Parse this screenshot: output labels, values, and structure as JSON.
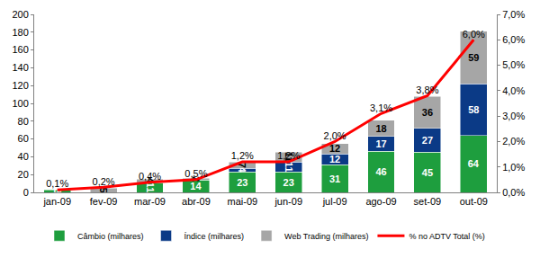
{
  "chart_data": {
    "type": "bar",
    "stacked": true,
    "data_labels": true,
    "grid": false,
    "legend": "bottom",
    "categories": [
      "jan-09",
      "fev-09",
      "mar-09",
      "abr-09",
      "mai-09",
      "jun-09",
      "jul-09",
      "ago-09",
      "set-09",
      "out-09"
    ],
    "series": [
      {
        "name": "Câmbio (milhares)",
        "color": "#1e9e3e",
        "values": [
          3,
          null,
          11,
          14,
          23,
          23,
          31,
          46,
          45,
          64
        ]
      },
      {
        "name": "Índice (milhares)",
        "color": "#0b3a86",
        "values": [
          null,
          null,
          null,
          null,
          4,
          11,
          12,
          17,
          27,
          58
        ]
      },
      {
        "name": "Web Trading (milhares)",
        "color": "#a6a6a6",
        "values": [
          null,
          5,
          4,
          2,
          7,
          11,
          12,
          18,
          36,
          59
        ]
      },
      {
        "name": "% no ADTV Total (%)",
        "type": "line",
        "axis": "y2",
        "color": "#ff0000",
        "values": [
          0.1,
          0.2,
          0.4,
          0.5,
          1.2,
          1.2,
          2.0,
          3.1,
          3.8,
          6.0
        ],
        "value_labels": [
          "0,1%",
          "0,2%",
          "0,4%",
          "0,5%",
          "1,2%",
          "1,2%",
          "2,0%",
          "3,1%",
          "3,8%",
          "6,0%"
        ]
      }
    ],
    "ylim": [
      0,
      200
    ],
    "yticks": [
      0,
      20,
      40,
      60,
      80,
      100,
      120,
      140,
      160,
      180,
      200
    ],
    "y2lim": [
      0,
      7
    ],
    "y2ticks": [
      {
        "value": 0,
        "label": "0,0%"
      },
      {
        "value": 1,
        "label": "1,0%"
      },
      {
        "value": 2,
        "label": "2,0%"
      },
      {
        "value": 3,
        "label": "3,0%"
      },
      {
        "value": 4,
        "label": "4,0%"
      },
      {
        "value": 5,
        "label": "5,0%"
      },
      {
        "value": 6,
        "label": "6,0%"
      },
      {
        "value": 7,
        "label": "7,0%"
      }
    ]
  }
}
